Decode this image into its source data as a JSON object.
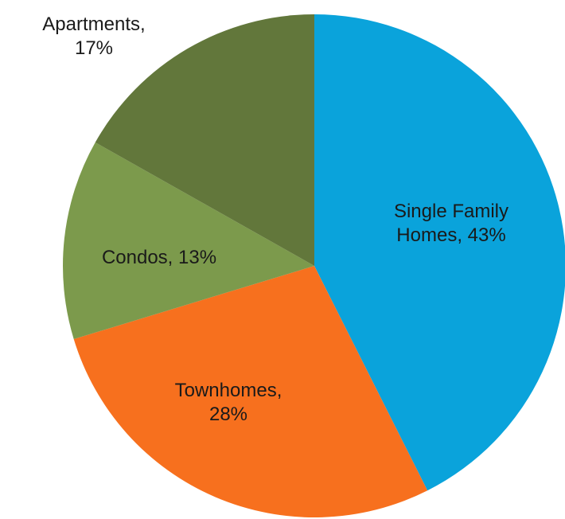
{
  "chart_data": {
    "type": "pie",
    "values": [
      43,
      28,
      13,
      17
    ],
    "value_labels": [
      "Single Family Homes, 43%",
      "Townhomes, 28%",
      "Condos, 13%",
      "Apartments, 17%"
    ],
    "colors": [
      "#0aa3db",
      "#f7701e",
      "#7c9a4c",
      "#62773b"
    ]
  }
}
